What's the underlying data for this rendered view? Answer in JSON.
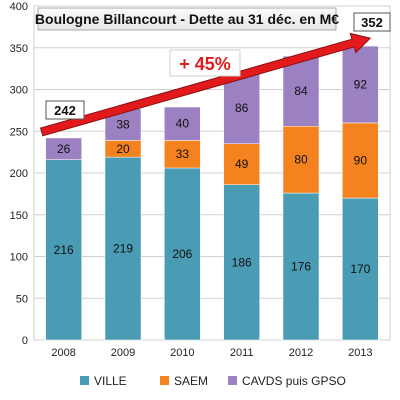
{
  "chart_data": {
    "type": "bar",
    "stacked": true,
    "title": "Boulogne Billancourt - Dette au 31 déc. en M€",
    "xlabel": "",
    "ylabel": "",
    "categories": [
      "2008",
      "2009",
      "2010",
      "2011",
      "2012",
      "2013"
    ],
    "series": [
      {
        "name": "VILLE",
        "color": "#4a9bb4",
        "values": [
          216,
          219,
          206,
          186,
          176,
          170
        ]
      },
      {
        "name": "SAEM",
        "color": "#f4821f",
        "values": [
          0,
          20,
          33,
          49,
          80,
          90
        ]
      },
      {
        "name": "CAVDS puis GPSO",
        "color": "#9b80c2",
        "values": [
          26,
          38,
          40,
          86,
          84,
          92
        ]
      }
    ],
    "segment_labels": [
      [
        "216",
        "219",
        "206",
        "186",
        "176",
        "170"
      ],
      [
        "",
        "20",
        "33",
        "49",
        "80",
        "90"
      ],
      [
        "26",
        "38",
        "40",
        "86",
        "84",
        "92"
      ]
    ],
    "ylim": [
      0,
      400
    ],
    "yticks": [
      "0",
      "50",
      "100",
      "150",
      "200",
      "250",
      "300",
      "350",
      "400"
    ],
    "grid": true,
    "legend": "bottom",
    "callouts": {
      "start_total": "242",
      "end_total": "352",
      "growth": "+ 45%"
    },
    "arrow_color": "#e31a1c"
  }
}
